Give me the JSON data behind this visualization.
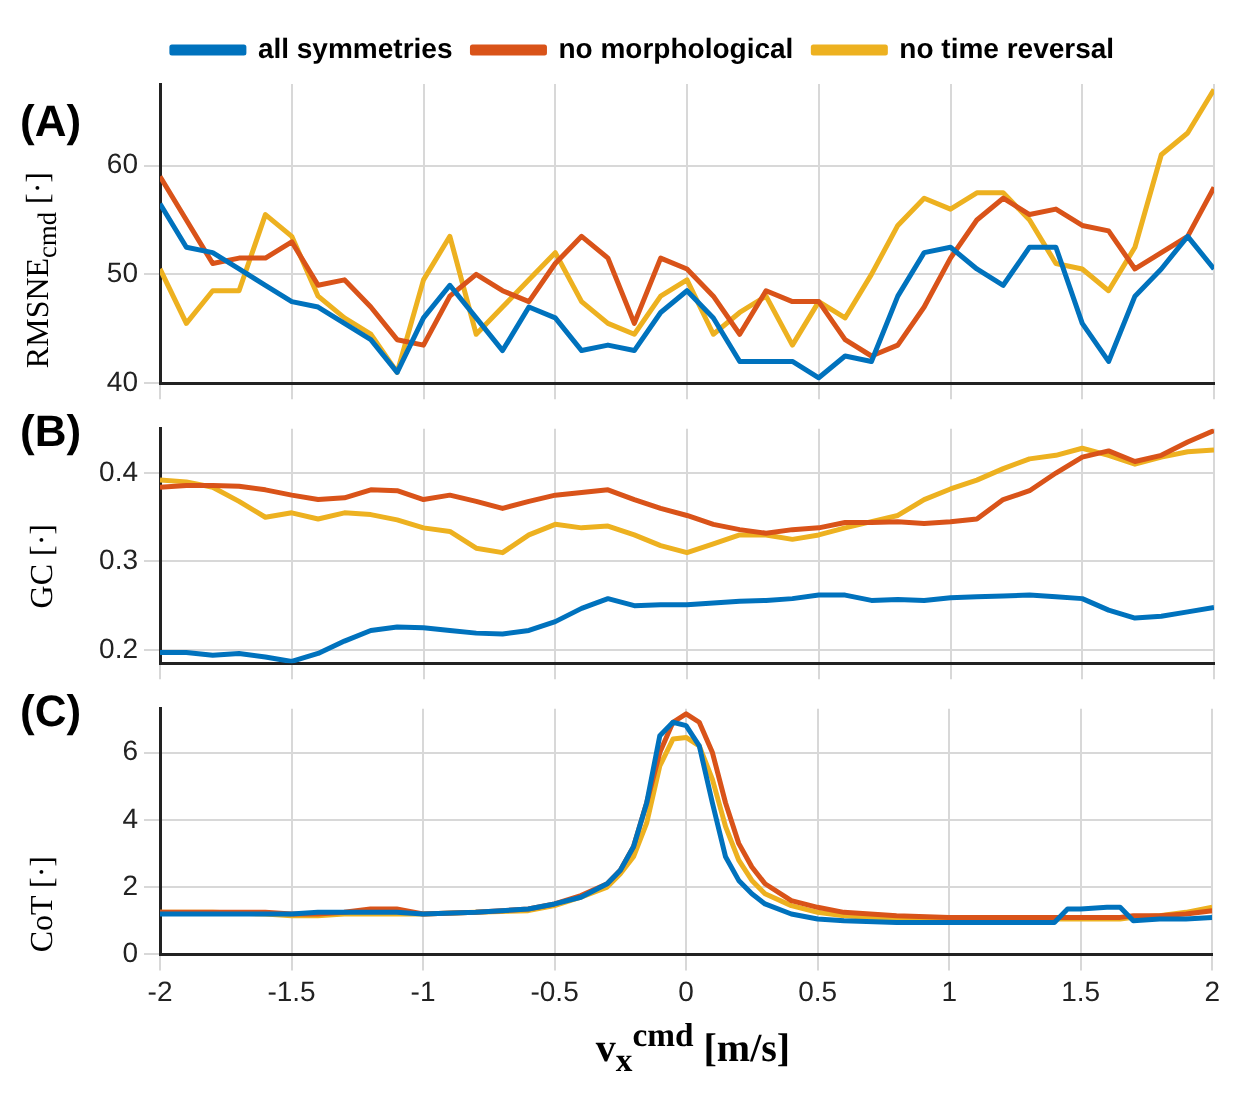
{
  "chart_data": [
    {
      "type": "line",
      "title": "(A)",
      "ylabel": "RMSNE$_{cmd}$ [·]",
      "legend": "top",
      "grid": true,
      "tick_labels": "y",
      "x": [
        -2,
        -1.9,
        -1.8,
        -1.7,
        -1.6,
        -1.5,
        -1.4,
        -1.3,
        -1.2,
        -1.1,
        -1,
        -0.9,
        -0.8,
        -0.7,
        -0.6,
        -0.5,
        -0.4,
        -0.3,
        -0.2,
        -0.1,
        0,
        0.1,
        0.2,
        0.3,
        0.4,
        0.5,
        0.6,
        0.7,
        0.8,
        0.9,
        1,
        1.1,
        1.2,
        1.3,
        1.4,
        1.5,
        1.6,
        1.7,
        1.8,
        1.9,
        2
      ],
      "xlim": [
        -2,
        2
      ],
      "xticks": [
        -2,
        -1.5,
        -1,
        -0.5,
        0,
        0.5,
        1,
        1.5,
        2
      ],
      "ylim": [
        40,
        67.5
      ],
      "yticks": [
        40,
        50,
        60
      ],
      "series": [
        {
          "name": "all symmetries",
          "color": "#0072bd",
          "values": [
            56.5,
            52.5,
            52,
            50.5,
            49,
            47.5,
            47,
            45.5,
            44,
            41,
            46,
            49,
            46,
            43,
            47,
            46,
            43,
            43.5,
            43,
            46.5,
            48.5,
            46,
            42,
            42,
            42,
            40.5,
            42.5,
            42,
            48,
            52,
            52.5,
            50.5,
            49,
            52.5,
            52.5,
            45.5,
            42,
            48,
            50.5,
            53.5,
            50.5
          ]
        },
        {
          "name": "no morphological",
          "color": "#d95319",
          "values": [
            59,
            55,
            51,
            51.5,
            51.5,
            53,
            49,
            49.5,
            47,
            44,
            43.5,
            48,
            50,
            48.5,
            47.5,
            51,
            53.5,
            51.5,
            45.5,
            51.5,
            50.5,
            48,
            44.5,
            48.5,
            47.5,
            47.5,
            44,
            42.5,
            43.5,
            47,
            51.5,
            55,
            57,
            55.5,
            56,
            54.5,
            54,
            50.5,
            52,
            53.5,
            58
          ]
        },
        {
          "name": "no time reversal",
          "color": "#edb120",
          "values": [
            50.5,
            45.5,
            48.5,
            48.5,
            55.5,
            53.5,
            48,
            46,
            44.5,
            41,
            49.5,
            53.5,
            44.5,
            47,
            49.5,
            52,
            47.5,
            45.5,
            44.5,
            48,
            49.5,
            44.5,
            46.5,
            48,
            43.5,
            47.5,
            46,
            50,
            54.5,
            57,
            56,
            57.5,
            57.5,
            55,
            51,
            50.5,
            48.5,
            52.5,
            61,
            63,
            67
          ]
        }
      ]
    },
    {
      "type": "line",
      "title": "(B)",
      "ylabel": "GC [·]",
      "grid": true,
      "tick_labels": "y",
      "x": [
        -2,
        -1.9,
        -1.8,
        -1.7,
        -1.6,
        -1.5,
        -1.4,
        -1.3,
        -1.2,
        -1.1,
        -1,
        -0.9,
        -0.8,
        -0.7,
        -0.6,
        -0.5,
        -0.4,
        -0.3,
        -0.2,
        -0.1,
        0,
        0.1,
        0.2,
        0.3,
        0.4,
        0.5,
        0.6,
        0.7,
        0.8,
        0.9,
        1,
        1.1,
        1.2,
        1.3,
        1.4,
        1.5,
        1.6,
        1.7,
        1.8,
        1.9,
        2
      ],
      "xlim": [
        -2,
        2
      ],
      "xticks": [
        -2,
        -1.5,
        -1,
        -0.5,
        0,
        0.5,
        1,
        1.5,
        2
      ],
      "ylim": [
        0.185,
        0.45
      ],
      "yticks": [
        0.2,
        0.3,
        0.4
      ],
      "series": [
        {
          "color": "#0072bd",
          "values": [
            0.197,
            0.197,
            0.194,
            0.196,
            0.192,
            0.187,
            0.196,
            0.21,
            0.222,
            0.226,
            0.225,
            0.222,
            0.219,
            0.218,
            0.222,
            0.232,
            0.247,
            0.258,
            0.25,
            0.251,
            0.251,
            0.253,
            0.255,
            0.256,
            0.258,
            0.262,
            0.262,
            0.256,
            0.257,
            0.256,
            0.259,
            0.26,
            0.261,
            0.262,
            0.26,
            0.258,
            0.245,
            0.236,
            0.238,
            0.243,
            0.248
          ]
        },
        {
          "color": "#d95319",
          "values": [
            0.384,
            0.386,
            0.386,
            0.385,
            0.381,
            0.375,
            0.37,
            0.372,
            0.381,
            0.38,
            0.37,
            0.375,
            0.368,
            0.36,
            0.368,
            0.375,
            0.378,
            0.381,
            0.37,
            0.36,
            0.352,
            0.342,
            0.336,
            0.332,
            0.336,
            0.338,
            0.344,
            0.344,
            0.345,
            0.343,
            0.345,
            0.348,
            0.37,
            0.38,
            0.4,
            0.418,
            0.425,
            0.413,
            0.42,
            0.435,
            0.448
          ]
        },
        {
          "color": "#edb120",
          "values": [
            0.392,
            0.39,
            0.384,
            0.368,
            0.35,
            0.355,
            0.348,
            0.355,
            0.353,
            0.347,
            0.338,
            0.334,
            0.315,
            0.31,
            0.33,
            0.342,
            0.338,
            0.34,
            0.33,
            0.318,
            0.31,
            0.32,
            0.33,
            0.33,
            0.325,
            0.33,
            0.338,
            0.345,
            0.352,
            0.37,
            0.382,
            0.392,
            0.405,
            0.416,
            0.42,
            0.428,
            0.42,
            0.41,
            0.418,
            0.424,
            0.426
          ]
        }
      ]
    },
    {
      "type": "line",
      "title": "(C)",
      "ylabel": "CoT [·]",
      "xlabel": "v$_{x}$$^{cmd}$ [m/s]",
      "grid": true,
      "x": [
        -2,
        -1.8,
        -1.6,
        -1.5,
        -1.4,
        -1.3,
        -1.2,
        -1.1,
        -1,
        -0.8,
        -0.6,
        -0.5,
        -0.4,
        -0.3,
        -0.25,
        -0.2,
        -0.15,
        -0.1,
        -0.05,
        0,
        0.05,
        0.1,
        0.15,
        0.2,
        0.25,
        0.3,
        0.4,
        0.5,
        0.6,
        0.8,
        1,
        1.2,
        1.4,
        1.45,
        1.5,
        1.6,
        1.65,
        1.7,
        1.8,
        1.9,
        2
      ],
      "xlim": [
        -2,
        2
      ],
      "xticks": [
        -2,
        -1.5,
        -1,
        -0.5,
        0,
        0.5,
        1,
        1.5,
        2
      ],
      "ylim": [
        0,
        7.3
      ],
      "yticks": [
        0,
        2,
        4,
        6
      ],
      "series": [
        {
          "color": "#0072bd",
          "values": [
            1.2,
            1.2,
            1.2,
            1.2,
            1.25,
            1.25,
            1.25,
            1.25,
            1.2,
            1.25,
            1.35,
            1.5,
            1.7,
            2.1,
            2.5,
            3.2,
            4.5,
            6.5,
            6.9,
            6.8,
            6.2,
            4.5,
            2.9,
            2.2,
            1.8,
            1.5,
            1.2,
            1.05,
            1,
            0.95,
            0.95,
            0.95,
            0.95,
            1.35,
            1.35,
            1.4,
            1.4,
            1,
            1.05,
            1.05,
            1.1
          ]
        },
        {
          "color": "#d95319",
          "values": [
            1.25,
            1.25,
            1.25,
            1.2,
            1.2,
            1.25,
            1.35,
            1.35,
            1.2,
            1.25,
            1.35,
            1.5,
            1.75,
            2.1,
            2.5,
            3.2,
            4.5,
            6,
            6.9,
            7.15,
            6.9,
            6,
            4.5,
            3.3,
            2.6,
            2.1,
            1.6,
            1.4,
            1.25,
            1.15,
            1.1,
            1.1,
            1.1,
            1.1,
            1.1,
            1.1,
            1.1,
            1.15,
            1.15,
            1.2,
            1.3
          ]
        },
        {
          "color": "#edb120",
          "values": [
            1.25,
            1.25,
            1.2,
            1.15,
            1.15,
            1.2,
            1.2,
            1.2,
            1.2,
            1.25,
            1.3,
            1.45,
            1.7,
            2,
            2.4,
            2.9,
            3.9,
            5.6,
            6.4,
            6.45,
            6.2,
            5.2,
            3.8,
            2.8,
            2.2,
            1.8,
            1.45,
            1.25,
            1.15,
            1.05,
            1.05,
            1.05,
            1.05,
            1.05,
            1.05,
            1.05,
            1.05,
            1.1,
            1.15,
            1.25,
            1.4
          ]
        }
      ]
    }
  ]
}
